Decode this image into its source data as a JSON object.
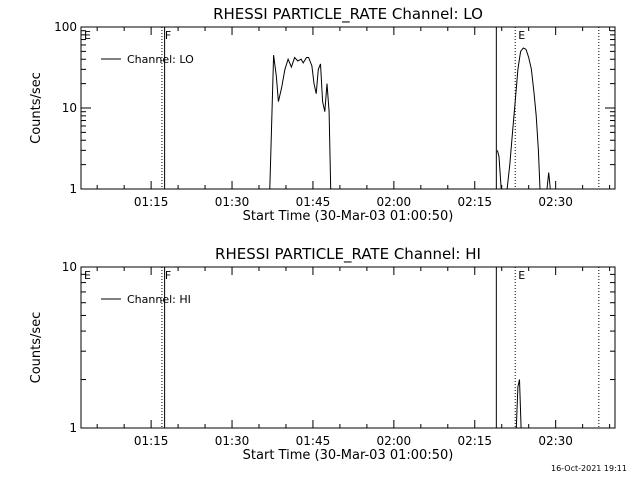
{
  "footer": {
    "timestamp": "16-Oct-2021 19:11"
  },
  "chart_data": [
    {
      "type": "line",
      "title": "RHESSI PARTICLE_RATE Channel: LO",
      "xlabel": "Start Time (30-Mar-03 01:00:50)",
      "ylabel": "Counts/sec",
      "yscale": "log",
      "xlim": [
        "01:02",
        "02:41"
      ],
      "ylim": [
        1,
        100
      ],
      "xticks": [
        "01:15",
        "01:30",
        "01:45",
        "02:00",
        "02:15",
        "02:30"
      ],
      "yticks": [
        "1",
        "10",
        "100"
      ],
      "markers": [
        {
          "label": "E",
          "time": "01:02",
          "style": "none"
        },
        {
          "label": "F",
          "time": "01:17",
          "style": "dotted"
        },
        {
          "label": "",
          "time": "01:17.5",
          "style": "solid"
        },
        {
          "label": "",
          "time": "02:19",
          "style": "solid"
        },
        {
          "label": "E",
          "time": "02:22.5",
          "style": "dotted"
        },
        {
          "label": "",
          "time": "02:38",
          "style": "dotted"
        }
      ],
      "series": [
        {
          "name": "Channel: LO",
          "color": "#000000",
          "segments": [
            [
              [
                "01:37",
                1
              ],
              [
                "01:37.7",
                45
              ],
              [
                "01:38.2",
                25
              ],
              [
                "01:38.6",
                12
              ],
              [
                "01:39.2",
                18
              ],
              [
                "01:39.8",
                30
              ],
              [
                "01:40.4",
                40
              ],
              [
                "01:41",
                32
              ],
              [
                "01:41.6",
                42
              ],
              [
                "01:42.2",
                38
              ],
              [
                "01:42.8",
                40
              ],
              [
                "01:43.2",
                36
              ],
              [
                "01:43.8",
                42
              ],
              [
                "01:44.2",
                42
              ],
              [
                "01:44.8",
                33
              ],
              [
                "01:45.2",
                20
              ],
              [
                "01:45.6",
                15
              ],
              [
                "01:46",
                30
              ],
              [
                "01:46.4",
                35
              ],
              [
                "01:46.8",
                12
              ],
              [
                "01:47.2",
                9
              ],
              [
                "01:47.6",
                20
              ],
              [
                "01:48",
                9
              ],
              [
                "01:48.3",
                1
              ]
            ],
            [
              [
                "02:19.2",
                3
              ],
              [
                "02:19.5",
                2.5
              ],
              [
                "02:19.9",
                1
              ],
              [
                "02:21",
                1
              ],
              [
                "02:21.5",
                2
              ],
              [
                "02:22",
                5
              ],
              [
                "02:22.5",
                12
              ],
              [
                "02:23",
                30
              ],
              [
                "02:23.5",
                50
              ],
              [
                "02:24",
                55
              ],
              [
                "02:24.5",
                53
              ],
              [
                "02:25",
                42
              ],
              [
                "02:25.5",
                30
              ],
              [
                "02:26",
                15
              ],
              [
                "02:26.4",
                8
              ],
              [
                "02:26.8",
                3
              ],
              [
                "02:27.1",
                1
              ]
            ],
            [
              [
                "02:28.4",
                1
              ],
              [
                "02:28.7",
                1.6
              ],
              [
                "02:29",
                1
              ]
            ]
          ]
        }
      ]
    },
    {
      "type": "line",
      "title": "RHESSI PARTICLE_RATE Channel: HI",
      "xlabel": "Start Time (30-Mar-03 01:00:50)",
      "ylabel": "Counts/sec",
      "yscale": "log",
      "xlim": [
        "01:02",
        "02:41"
      ],
      "ylim": [
        1,
        10
      ],
      "xticks": [
        "01:15",
        "01:30",
        "01:45",
        "02:00",
        "02:15",
        "02:30"
      ],
      "yticks": [
        "1",
        "10"
      ],
      "markers": [
        {
          "label": "E",
          "time": "01:02",
          "style": "none"
        },
        {
          "label": "F",
          "time": "01:17",
          "style": "dotted"
        },
        {
          "label": "",
          "time": "01:17.5",
          "style": "solid"
        },
        {
          "label": "",
          "time": "02:19",
          "style": "solid"
        },
        {
          "label": "E",
          "time": "02:22.5",
          "style": "dotted"
        },
        {
          "label": "",
          "time": "02:38",
          "style": "dotted"
        }
      ],
      "series": [
        {
          "name": "Channel: HI",
          "color": "#000000",
          "segments": [
            [
              [
                "02:22.7",
                1
              ],
              [
                "02:23",
                1.8
              ],
              [
                "02:23.3",
                2
              ],
              [
                "02:23.6",
                1
              ]
            ]
          ]
        }
      ]
    }
  ]
}
